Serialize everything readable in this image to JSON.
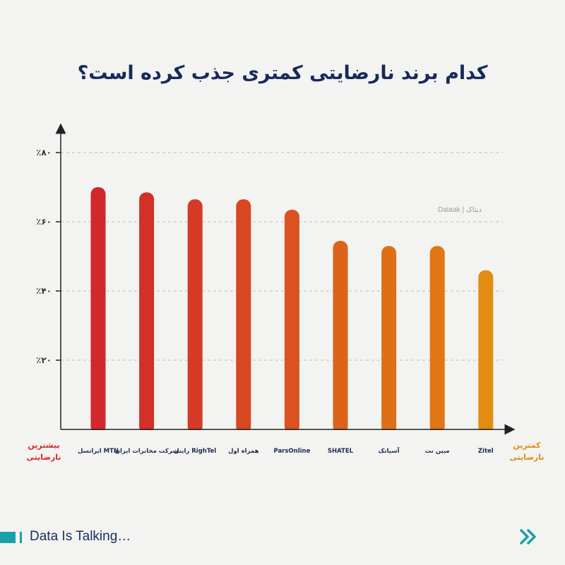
{
  "title": "کدام برند نارضایتی کمتری جذب کرده است؟",
  "watermark": "Dataak | دیتاک",
  "left_label": "بیشترین نارضایتی",
  "right_label": "کمترین نارضایتی",
  "footer": "Data Is Talking…",
  "chart_data": {
    "type": "bar",
    "categories": [
      "ایرانسل MTN",
      "شرکت مخابرات ایران",
      "رایتل RighTel",
      "همراه اول",
      "ParsOnline",
      "SHATEL",
      "آسیاتک",
      "مبین نت",
      "Zitel"
    ],
    "values": [
      70,
      68.5,
      66.5,
      66.5,
      63.5,
      54.5,
      53,
      53,
      46
    ],
    "ylim": [
      0,
      80
    ],
    "yticks": [
      20,
      40,
      60,
      80
    ],
    "ytick_labels": [
      "٪۲۰",
      "٪۴۰",
      "٪۶۰",
      "٪۸۰"
    ],
    "grid": true,
    "colors": [
      "#d0282c",
      "#d23028",
      "#d43a25",
      "#d74722",
      "#da5220",
      "#dd631a",
      "#df6f17",
      "#e07614",
      "#e28c12"
    ]
  }
}
